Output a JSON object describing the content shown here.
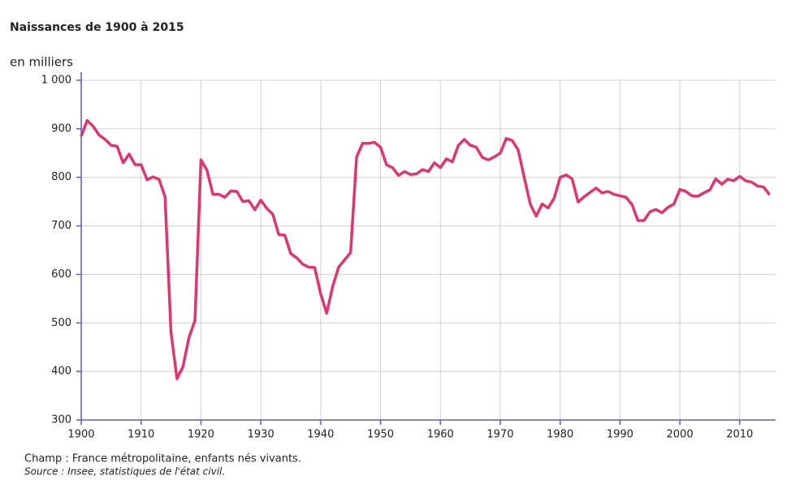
{
  "chart_data": {
    "type": "line",
    "title": "Naissances de 1900 à 2015",
    "ylabel": "en milliers",
    "notes": [
      "Champ : France métropolitaine, enfants nés vivants.",
      "Source : Insee, statistiques de l'état civil."
    ],
    "x": [
      1900,
      1901,
      1902,
      1903,
      1904,
      1905,
      1906,
      1907,
      1908,
      1909,
      1910,
      1911,
      1912,
      1913,
      1914,
      1915,
      1916,
      1917,
      1918,
      1919,
      1920,
      1921,
      1922,
      1923,
      1924,
      1925,
      1926,
      1927,
      1928,
      1929,
      1930,
      1931,
      1932,
      1933,
      1934,
      1935,
      1936,
      1937,
      1938,
      1939,
      1940,
      1941,
      1942,
      1943,
      1944,
      1945,
      1946,
      1947,
      1948,
      1949,
      1950,
      1951,
      1952,
      1953,
      1954,
      1955,
      1956,
      1957,
      1958,
      1959,
      1960,
      1961,
      1962,
      1963,
      1964,
      1965,
      1966,
      1967,
      1968,
      1969,
      1970,
      1971,
      1972,
      1973,
      1974,
      1975,
      1976,
      1977,
      1978,
      1979,
      1980,
      1981,
      1982,
      1983,
      1984,
      1985,
      1986,
      1987,
      1988,
      1989,
      1990,
      1991,
      1992,
      1993,
      1994,
      1995,
      1996,
      1997,
      1998,
      1999,
      2000,
      2001,
      2002,
      2003,
      2004,
      2005,
      2006,
      2007,
      2008,
      2009,
      2010,
      2011,
      2012,
      2013,
      2014,
      2015
    ],
    "series": [
      {
        "color": "#e0356f",
        "values": [
          885,
          917,
          905,
          887,
          878,
          866,
          864,
          830,
          848,
          826,
          826,
          795,
          801,
          796,
          760,
          480,
          385,
          410,
          470,
          505,
          836,
          815,
          765,
          765,
          759,
          772,
          771,
          750,
          752,
          733,
          753,
          736,
          724,
          682,
          681,
          643,
          634,
          621,
          615,
          614,
          560,
          520,
          575,
          615,
          630,
          645,
          842,
          870,
          870,
          872,
          862,
          826,
          820,
          804,
          812,
          806,
          807,
          816,
          812,
          830,
          820,
          838,
          832,
          866,
          878,
          866,
          862,
          841,
          836,
          842,
          850,
          880,
          876,
          856,
          800,
          745,
          720,
          745,
          737,
          757,
          800,
          805,
          797,
          749,
          760,
          769,
          778,
          768,
          771,
          765,
          762,
          759,
          744,
          711,
          711,
          729,
          734,
          727,
          738,
          745,
          775,
          771,
          762,
          761,
          768,
          774,
          797,
          786,
          796,
          793,
          802,
          793,
          790,
          782,
          780,
          764
        ]
      }
    ],
    "xlim": [
      1900,
      2016
    ],
    "xticks": [
      1900,
      1910,
      1920,
      1930,
      1940,
      1950,
      1960,
      1970,
      1980,
      1990,
      2000,
      2010
    ],
    "ylim": [
      300,
      1000
    ],
    "yticks": [
      300,
      400,
      500,
      600,
      700,
      800,
      900,
      {
        "value": 1000,
        "label": "1 000"
      }
    ],
    "grid": true
  }
}
